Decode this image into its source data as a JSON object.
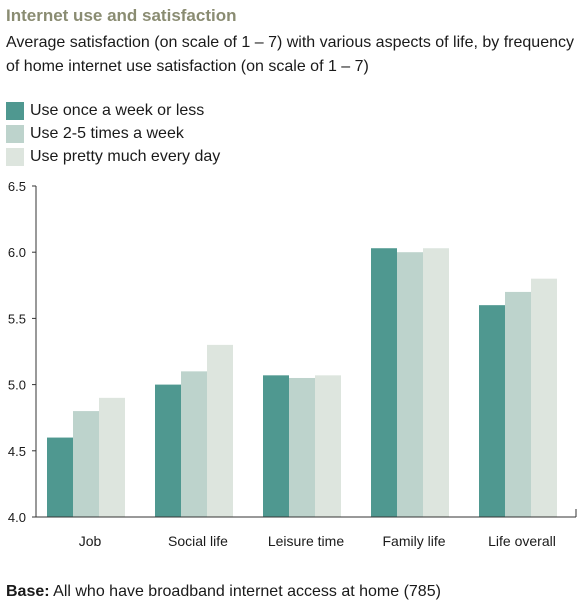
{
  "title": "Internet use and satisfaction",
  "subtitle": "Average satisfaction (on scale of 1 – 7) with various aspects of life, by frequency of home internet use satisfaction (on scale of 1 – 7)",
  "footer": {
    "label": "Base:",
    "text": " All who have broadband internet access at home (785)"
  },
  "colors": {
    "title": "#8a8c72",
    "axis": "#333333"
  },
  "chart_data": {
    "type": "bar",
    "categories": [
      "Job",
      "Social life",
      "Leisure time",
      "Family life",
      "Life overall"
    ],
    "series": [
      {
        "name": "Use once a week or less",
        "color": "#4f9890",
        "values": [
          4.6,
          5.0,
          5.07,
          6.03,
          5.6
        ]
      },
      {
        "name": "Use 2-5 times a week",
        "color": "#bdd3cc",
        "values": [
          4.8,
          5.1,
          5.05,
          6.0,
          5.7
        ]
      },
      {
        "name": "Use pretty much every day",
        "color": "#dde5de",
        "values": [
          4.9,
          5.3,
          5.07,
          6.03,
          5.8
        ]
      }
    ],
    "ylim": [
      4.0,
      6.5
    ],
    "yticks": [
      "4.0",
      "4.5",
      "5.0",
      "5.5",
      "6.0",
      "6.5"
    ],
    "legend_position": "top-left"
  }
}
